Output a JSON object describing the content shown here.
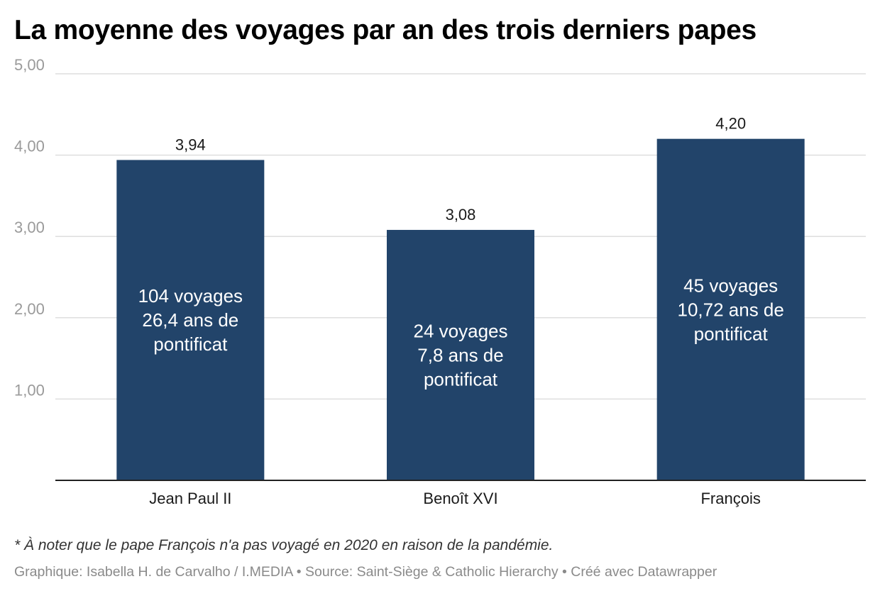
{
  "chart_data": {
    "type": "bar",
    "title": "La moyenne des voyages par an des trois derniers papes",
    "xlabel": "",
    "ylabel": "",
    "categories": [
      "Jean Paul II",
      "Benoît XVI",
      "François"
    ],
    "values": [
      3.94,
      3.08,
      4.2
    ],
    "value_labels": [
      "3,94",
      "3,08",
      "4,20"
    ],
    "bar_annotations": [
      [
        "104 voyages",
        "26,4 ans de",
        "pontificat"
      ],
      [
        "24 voyages",
        "7,8 ans de",
        "pontificat"
      ],
      [
        "45 voyages",
        "10,72 ans de",
        "pontificat"
      ]
    ],
    "ylim": [
      0,
      5
    ],
    "y_ticks": [
      1,
      2,
      3,
      4,
      5
    ],
    "y_tick_labels": [
      "1,00",
      "2,00",
      "3,00",
      "4,00",
      "5,00"
    ],
    "grid": true,
    "legend": "none",
    "bar_color": "#22446a"
  },
  "footer": {
    "note": "* À noter que le pape François n'a pas voyagé en 2020 en raison de la pandémie.",
    "credits": "Graphique: Isabella H. de Carvalho / I.MEDIA • Source: Saint-Siège & Catholic Hierarchy • Créé avec Datawrapper"
  }
}
